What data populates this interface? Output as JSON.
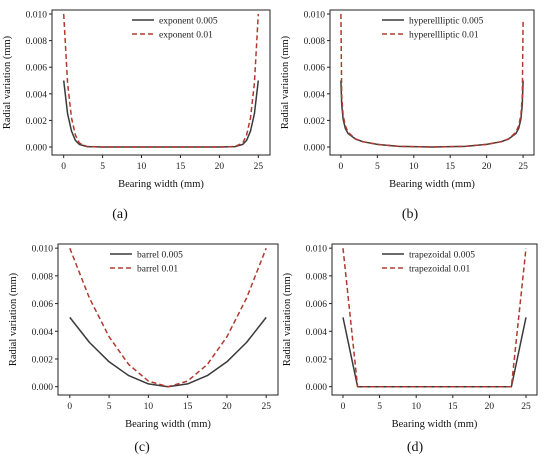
{
  "chart_data": [
    {
      "type": "line",
      "caption": "(a)",
      "xlabel": "Bearing width  (mm)",
      "ylabel": "Radial variation (mm)",
      "xlim": [
        -1.5,
        26.5
      ],
      "ylim": [
        -0.0006,
        0.0103
      ],
      "xticks": [
        0,
        5,
        10,
        15,
        20,
        25
      ],
      "yticks": [
        0.0,
        0.002,
        0.004,
        0.006,
        0.008,
        0.01
      ],
      "ytick_labels": [
        "0.000",
        "0.002",
        "0.004",
        "0.006",
        "0.008",
        "0.010"
      ],
      "legend_position": "top-right",
      "series": [
        {
          "name": "exponent 0.005",
          "style": "solid",
          "color": "#3a3a3a",
          "x": [
            0,
            0.5,
            1,
            1.5,
            2,
            3,
            5,
            10,
            15,
            20,
            22,
            23,
            23.5,
            24,
            24.5,
            25
          ],
          "y": [
            0.005,
            0.0025,
            0.0012,
            0.0005,
            0.0002,
            3e-05,
            0,
            0,
            0,
            0,
            3e-05,
            0.0002,
            0.0005,
            0.0012,
            0.0025,
            0.005
          ]
        },
        {
          "name": "exponent 0.01",
          "style": "dashed",
          "color": "#b03a2e",
          "x": [
            0,
            0.5,
            1,
            1.5,
            2,
            3,
            5,
            10,
            15,
            20,
            22,
            23,
            23.5,
            24,
            24.5,
            25
          ],
          "y": [
            0.01,
            0.0048,
            0.0022,
            0.0009,
            0.0003,
            4e-05,
            0,
            0,
            0,
            0,
            4e-05,
            0.0003,
            0.0009,
            0.0022,
            0.0048,
            0.01
          ]
        }
      ]
    },
    {
      "type": "line",
      "caption": "(b)",
      "xlabel": "Bearing width (mm)",
      "ylabel": "Radial variation (mm)",
      "xlim": [
        -1.5,
        26.5
      ],
      "ylim": [
        -0.0006,
        0.0103
      ],
      "xticks": [
        0,
        5,
        10,
        15,
        20,
        25
      ],
      "yticks": [
        0.0,
        0.002,
        0.004,
        0.006,
        0.008,
        0.01
      ],
      "ytick_labels": [
        "0.000",
        "0.002",
        "0.004",
        "0.006",
        "0.008",
        "0.010"
      ],
      "legend_position": "top-right",
      "series": [
        {
          "name": "hyperellliptic 0.005",
          "style": "solid",
          "color": "#3a3a3a",
          "x": [
            0,
            0.1,
            0.3,
            0.6,
            1,
            2,
            3,
            5,
            8,
            12.5,
            17,
            20,
            22,
            23,
            24,
            24.4,
            24.7,
            24.9,
            25
          ],
          "y": [
            0.005,
            0.0032,
            0.0021,
            0.0014,
            0.001,
            0.0006,
            0.0004,
            0.0002,
            5e-05,
            0,
            5e-05,
            0.0002,
            0.0004,
            0.0006,
            0.001,
            0.0014,
            0.0021,
            0.0032,
            0.005
          ]
        },
        {
          "name": "hyperellliptic 0.01",
          "style": "dashed",
          "color": "#b03a2e",
          "x": [
            0,
            0.1,
            0.3,
            0.6,
            1,
            2,
            3,
            5,
            8,
            12.5,
            17,
            20,
            22,
            23,
            24,
            24.4,
            24.7,
            24.9,
            25
          ],
          "y": [
            0.01,
            0.0038,
            0.0024,
            0.0016,
            0.0011,
            0.0006,
            0.0004,
            0.0002,
            5e-05,
            0,
            5e-05,
            0.0002,
            0.0004,
            0.0006,
            0.0011,
            0.0016,
            0.0024,
            0.0038,
            0.0095
          ]
        }
      ]
    },
    {
      "type": "line",
      "caption": "(c)",
      "xlabel": "Bearing width (mm)",
      "ylabel": "Radial variation (mm)",
      "xlim": [
        -1.5,
        26.5
      ],
      "ylim": [
        -0.0006,
        0.0103
      ],
      "xticks": [
        0,
        5,
        10,
        15,
        20,
        25
      ],
      "yticks": [
        0.0,
        0.002,
        0.004,
        0.006,
        0.008,
        0.01
      ],
      "ytick_labels": [
        "0.000",
        "0.002",
        "0.004",
        "0.006",
        "0.008",
        "0.010"
      ],
      "legend_position": "top-left",
      "series": [
        {
          "name": "barrel 0.005",
          "style": "solid",
          "color": "#3a3a3a",
          "x": [
            0,
            2.5,
            5,
            7.5,
            10,
            12.5,
            15,
            17.5,
            20,
            22.5,
            25
          ],
          "y": [
            0.005,
            0.0032,
            0.0018,
            0.0008,
            0.0002,
            0,
            0.0002,
            0.0008,
            0.0018,
            0.0032,
            0.005
          ]
        },
        {
          "name": "barrel 0.01",
          "style": "dashed",
          "color": "#b03a2e",
          "x": [
            0,
            2.5,
            5,
            7.5,
            10,
            12.5,
            15,
            17.5,
            20,
            22.5,
            25
          ],
          "y": [
            0.01,
            0.0064,
            0.0036,
            0.0016,
            0.0004,
            0,
            0.0004,
            0.0016,
            0.0036,
            0.0064,
            0.01
          ]
        }
      ]
    },
    {
      "type": "line",
      "caption": "(d)",
      "xlabel": "Bearing width (mm)",
      "ylabel": "Radial variation (mm)",
      "xlim": [
        -1.5,
        26.5
      ],
      "ylim": [
        -0.0006,
        0.0103
      ],
      "xticks": [
        0,
        5,
        10,
        15,
        20,
        25
      ],
      "yticks": [
        0.0,
        0.002,
        0.004,
        0.006,
        0.008,
        0.01
      ],
      "ytick_labels": [
        "0.000",
        "0.002",
        "0.004",
        "0.006",
        "0.008",
        "0.010"
      ],
      "legend_position": "top-right",
      "series": [
        {
          "name": "trapezoidal 0.005",
          "style": "solid",
          "color": "#3a3a3a",
          "x": [
            0,
            2,
            23,
            25
          ],
          "y": [
            0.005,
            0,
            0,
            0.005
          ]
        },
        {
          "name": "trapezoidal 0.01",
          "style": "dashed",
          "color": "#b03a2e",
          "x": [
            0,
            2,
            23,
            25
          ],
          "y": [
            0.01,
            0,
            0,
            0.01
          ]
        }
      ]
    }
  ]
}
